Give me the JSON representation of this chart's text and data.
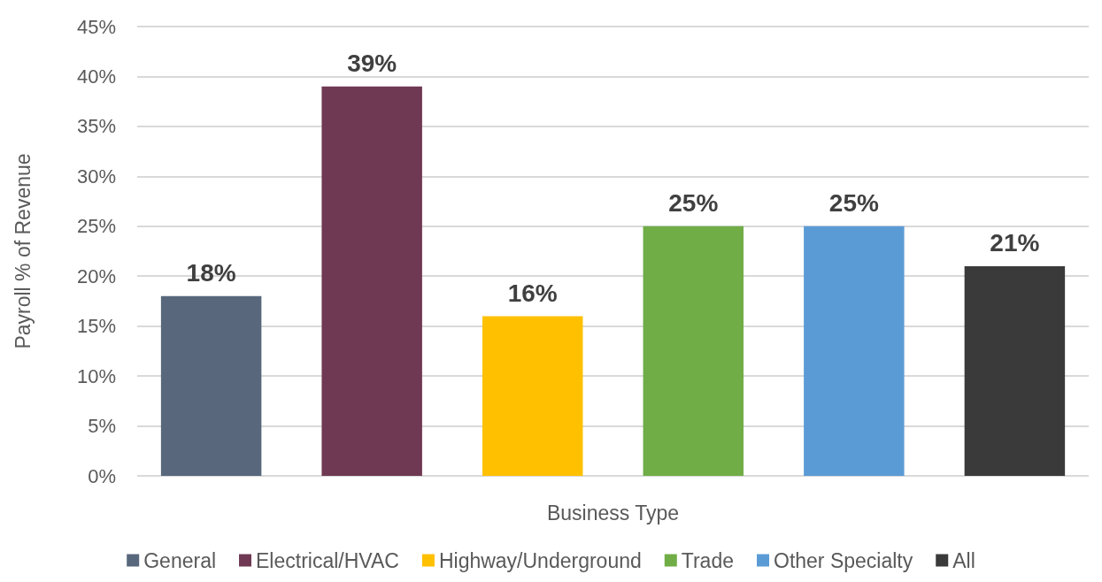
{
  "chart_data": {
    "type": "bar",
    "xlabel": "Business Type",
    "ylabel": "Payroll % of Revenue",
    "categories": [
      null
    ],
    "series": [
      {
        "name": "General",
        "color": "#58677c",
        "values": [
          18
        ],
        "value_labels": [
          "18%"
        ]
      },
      {
        "name": "Electrical/HVAC",
        "color": "#6f3953",
        "values": [
          39
        ],
        "value_labels": [
          "39%"
        ]
      },
      {
        "name": "Highway/Underground",
        "color": "#ffc000",
        "values": [
          16
        ],
        "value_labels": [
          "16%"
        ]
      },
      {
        "name": "Trade",
        "color": "#70ad47",
        "values": [
          25
        ],
        "value_labels": [
          "25%"
        ]
      },
      {
        "name": "Other Specialty",
        "color": "#5b9bd5",
        "values": [
          25
        ],
        "value_labels": [
          "25%"
        ]
      },
      {
        "name": "All",
        "color": "#3a3a3a",
        "values": [
          21
        ],
        "value_labels": [
          "21%"
        ]
      }
    ],
    "ylim": [
      0,
      45
    ],
    "yticks": [
      {
        "value": 0,
        "label": "0%"
      },
      {
        "value": 5,
        "label": "5%"
      },
      {
        "value": 10,
        "label": "10%"
      },
      {
        "value": 15,
        "label": "15%"
      },
      {
        "value": 20,
        "label": "20%"
      },
      {
        "value": 25,
        "label": "25%"
      },
      {
        "value": 30,
        "label": "30%"
      },
      {
        "value": 35,
        "label": "35%"
      },
      {
        "value": 40,
        "label": "40%"
      },
      {
        "value": 45,
        "label": "45%"
      }
    ],
    "grid": "y",
    "legend": "bottom"
  }
}
